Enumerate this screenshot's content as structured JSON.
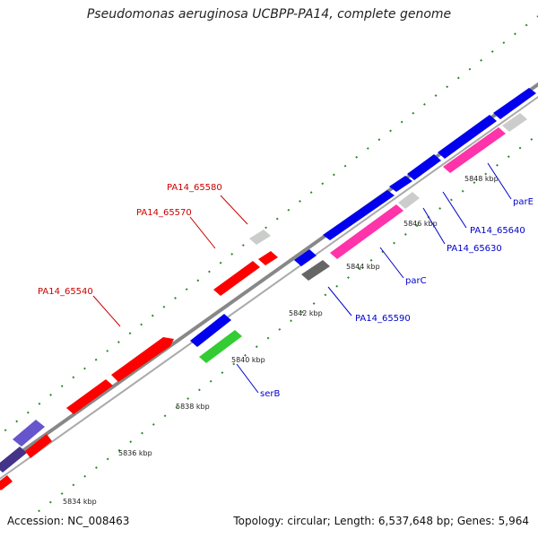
{
  "title": "Pseudomonas aeruginosa UCBPP-PA14, complete genome",
  "footer": {
    "accession": "Accession: NC_008463",
    "topology": "Topology: circular; Length: 6,537,648 bp; Genes: 5,964"
  },
  "ticks": [
    "5834 kbp",
    "5836 kbp",
    "5838 kbp",
    "5840 kbp",
    "5842 kbp",
    "5844 kbp",
    "5846 kbp",
    "5848 kbp"
  ],
  "gene_labels": {
    "pa14_65580": "PA14_65580",
    "pa14_65570": "PA14_65570",
    "pa14_65540": "PA14_65540",
    "serb": "serB",
    "pa14_65590": "PA14_65590",
    "parc": "parC",
    "pa14_65630": "PA14_65630",
    "pa14_65640": "PA14_65640",
    "pare": "parE"
  },
  "colors": {
    "red": "#ff0000",
    "blue": "#0000ee",
    "pink": "#ff33aa",
    "green": "#33cc33",
    "grey": "#cccccc",
    "darkgrey": "#666666",
    "purple": "#6655cc",
    "navy": "#443388",
    "leader_red": "#cc0000",
    "leader_blue": "#0000cc",
    "backbone": "#888888",
    "dot_green": "#2a8a2a"
  }
}
